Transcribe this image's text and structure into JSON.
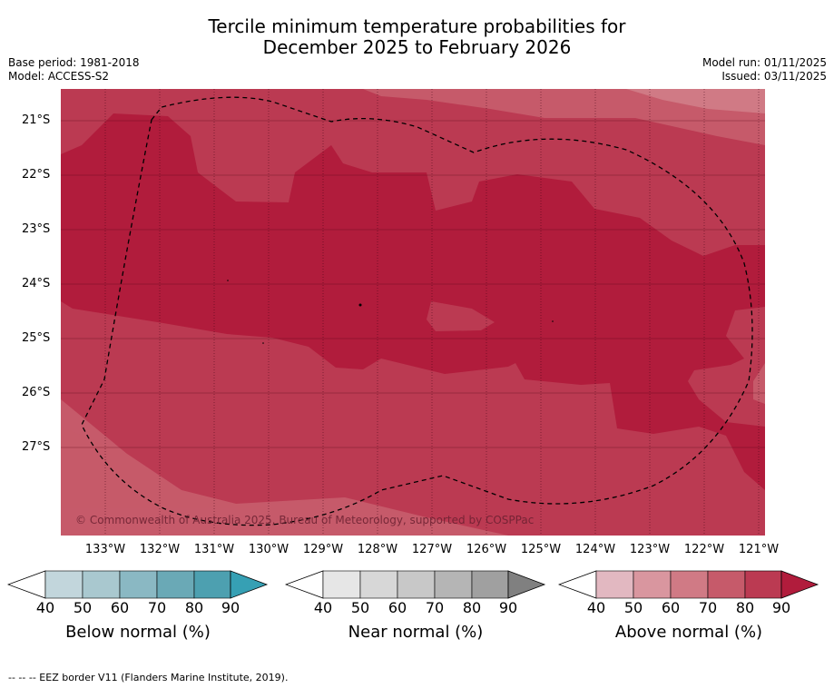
{
  "title_line1": "Tercile minimum temperature probabilities for",
  "title_line2": "December 2025 to February 2026",
  "base_period": "Base period: 1981-2018",
  "model": "Model: ACCESS-S2",
  "model_run": "Model run: 01/11/2025",
  "issued": "Issued: 03/11/2025",
  "lat_labels": [
    "21°S",
    "22°S",
    "23°S",
    "24°S",
    "25°S",
    "26°S",
    "27°S"
  ],
  "lon_labels": [
    "133°W",
    "132°W",
    "131°W",
    "130°W",
    "129°W",
    "128°W",
    "127°W",
    "126°W",
    "125°W",
    "124°W",
    "123°W",
    "122°W",
    "121°W"
  ],
  "copyright": "© Commonwealth of Australia 2025, Bureau of Meteorology, supported by COSPPac",
  "colorbars": [
    {
      "title": "Below normal (%)",
      "ticks": [
        "40",
        "50",
        "60",
        "70",
        "80",
        "90"
      ],
      "colors": [
        "#c2d6dc",
        "#a9c8cf",
        "#8ab8c3",
        "#6aa9b6",
        "#4da0b0",
        "#36a0b4"
      ]
    },
    {
      "title": "Near normal (%)",
      "ticks": [
        "40",
        "50",
        "60",
        "70",
        "80",
        "90"
      ],
      "colors": [
        "#e6e6e6",
        "#d7d7d7",
        "#c8c8c8",
        "#b5b5b5",
        "#a0a0a0",
        "#808080"
      ]
    },
    {
      "title": "Above normal (%)",
      "ticks": [
        "40",
        "50",
        "60",
        "70",
        "80",
        "90"
      ],
      "colors": [
        "#e2b8c1",
        "#d9969f",
        "#d07a85",
        "#c65a6a",
        "#bb3a52",
        "#b11c3c"
      ]
    }
  ],
  "footnote": "--  --  -- EEZ border V11 (Flanders Marine Institute, 2019)."
}
